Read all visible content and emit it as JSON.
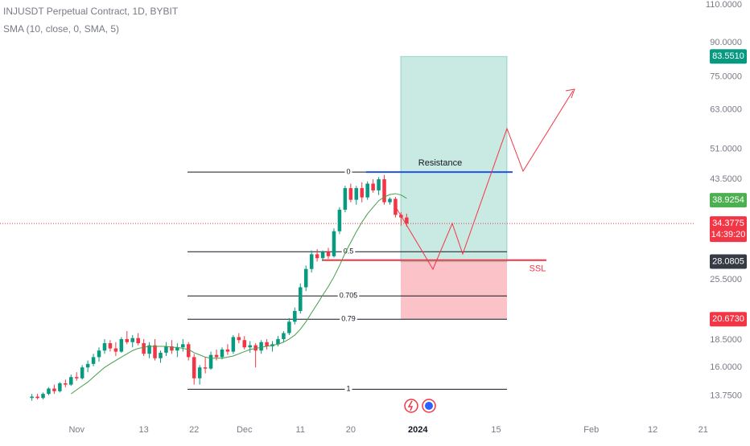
{
  "chart_data": {
    "type": "candlestick",
    "title": "INJUSDT Perpetual Contract, 1D, BYBIT",
    "subtitle": "SMA (10, close, 0, SMA, 5)",
    "log_scale": true,
    "grid": false,
    "up_color": "#089981",
    "down_color": "#f23645",
    "xlim": [
      -13.7,
      112.9
    ],
    "ylim": [
      12.5,
      112.8
    ],
    "xticks": [
      {
        "value": 0,
        "label": "Nov"
      },
      {
        "value": 12,
        "label": "13"
      },
      {
        "value": 21,
        "label": "22"
      },
      {
        "value": 30,
        "label": "Dec"
      },
      {
        "value": 40,
        "label": "11"
      },
      {
        "value": 49,
        "label": "20"
      },
      {
        "value": 61,
        "label": "2024"
      },
      {
        "value": 75,
        "label": "15"
      },
      {
        "value": 92,
        "label": "Feb"
      },
      {
        "value": 103,
        "label": "12"
      },
      {
        "value": 112,
        "label": "21"
      }
    ],
    "yticks": [
      {
        "value": 110,
        "label": "110.0000"
      },
      {
        "value": 90,
        "label": "90.0000"
      },
      {
        "value": 75,
        "label": "75.0000"
      },
      {
        "value": 63,
        "label": "63.0000"
      },
      {
        "value": 51,
        "label": "51.0000"
      },
      {
        "value": 43.5,
        "label": "43.5000"
      },
      {
        "value": 25.5,
        "label": "25.5000"
      },
      {
        "value": 18.5,
        "label": "18.5000"
      },
      {
        "value": 16,
        "label": "16.0000"
      },
      {
        "value": 13.75,
        "label": "13.7500"
      }
    ],
    "x": [
      -8,
      -7,
      -6,
      -5,
      -4,
      -3,
      -2,
      -1,
      0,
      1,
      2,
      3,
      4,
      5,
      6,
      7,
      8,
      9,
      10,
      11,
      12,
      13,
      14,
      15,
      16,
      17,
      18,
      19,
      20,
      21,
      22,
      23,
      24,
      25,
      26,
      27,
      28,
      29,
      30,
      31,
      32,
      33,
      34,
      35,
      36,
      37,
      38,
      39,
      40,
      41,
      42,
      43,
      44,
      45,
      46,
      47,
      48,
      49,
      50,
      51,
      52,
      53,
      54,
      55,
      56,
      57,
      58,
      59
    ],
    "open": [
      13.6,
      13.7,
      13.6,
      13.9,
      14.3,
      14.1,
      14.7,
      14.6,
      15.2,
      15.1,
      16.0,
      16.3,
      16.9,
      17.5,
      18.2,
      17.7,
      17.4,
      18.6,
      18.3,
      18.7,
      18.2,
      17.2,
      18.0,
      16.8,
      17.3,
      17.9,
      17.5,
      17.8,
      18.1,
      16.9,
      15.1,
      16.0,
      15.9,
      17.1,
      16.9,
      17.6,
      17.4,
      18.8,
      18.5,
      17.8,
      18.0,
      17.5,
      18.3,
      17.9,
      18.1,
      18.6,
      19.2,
      20.4,
      21.6,
      24.5,
      27.0,
      29.2,
      28.6,
      29.6,
      28.9,
      33.0,
      37.0,
      41.5,
      39.0,
      41.5,
      39.5,
      42.5,
      41.0,
      43.5,
      38.5,
      39.2,
      36.0,
      35.5
    ],
    "high": [
      13.9,
      13.9,
      14.0,
      14.4,
      14.6,
      14.8,
      15.0,
      15.4,
      15.6,
      16.2,
      16.6,
      17.2,
      17.8,
      18.6,
      18.5,
      18.3,
      18.8,
      19.4,
      19.0,
      19.2,
      18.6,
      18.3,
      18.6,
      17.5,
      18.3,
      18.5,
      18.2,
      18.6,
      18.3,
      17.2,
      16.2,
      16.9,
      17.4,
      17.6,
      17.8,
      18.1,
      19.0,
      19.2,
      18.9,
      18.4,
      18.2,
      18.5,
      18.6,
      18.4,
      18.9,
      19.4,
      20.8,
      22.0,
      25.0,
      27.5,
      29.8,
      30.0,
      29.8,
      30.2,
      33.5,
      37.5,
      42.0,
      42.5,
      42.0,
      42.8,
      43.0,
      43.5,
      44.0,
      44.5,
      39.5,
      39.6,
      36.5,
      36.2
    ],
    "low": [
      13.4,
      13.5,
      13.5,
      13.8,
      13.9,
      14.0,
      14.4,
      14.5,
      14.9,
      15.0,
      15.6,
      16.1,
      16.5,
      17.2,
      17.4,
      17.0,
      17.3,
      18.1,
      17.8,
      18.0,
      17.0,
      16.8,
      16.6,
      16.4,
      17.0,
      17.2,
      16.9,
      17.4,
      16.6,
      14.6,
      14.6,
      15.5,
      15.8,
      16.6,
      16.7,
      17.1,
      17.2,
      18.2,
      17.6,
      17.3,
      16.0,
      17.2,
      17.6,
      17.4,
      17.9,
      18.3,
      19.0,
      20.1,
      21.3,
      24.0,
      26.5,
      28.1,
      28.2,
      28.5,
      28.7,
      32.5,
      36.5,
      38.5,
      38.0,
      38.5,
      39.0,
      40.5,
      40.0,
      38.0,
      38.0,
      35.5,
      34.0,
      33.8
    ],
    "close": [
      13.7,
      13.6,
      13.9,
      14.3,
      14.1,
      14.7,
      14.6,
      15.2,
      15.1,
      16.0,
      16.3,
      16.9,
      17.5,
      18.2,
      17.7,
      17.4,
      18.6,
      18.3,
      18.7,
      18.2,
      17.2,
      18.0,
      16.8,
      17.3,
      17.9,
      17.5,
      17.8,
      18.1,
      16.9,
      15.1,
      16.0,
      15.9,
      17.1,
      16.9,
      17.6,
      17.4,
      18.8,
      18.5,
      17.8,
      18.0,
      17.5,
      18.3,
      17.9,
      18.1,
      18.6,
      19.2,
      20.4,
      21.6,
      24.5,
      27.0,
      29.2,
      28.6,
      29.6,
      28.9,
      33.0,
      37.0,
      41.5,
      39.0,
      41.5,
      39.5,
      42.5,
      41.0,
      43.5,
      38.5,
      39.2,
      36.0,
      35.5,
      34.3775
    ],
    "sma": {
      "color": "#43a047",
      "values": [
        null,
        null,
        null,
        null,
        null,
        null,
        null,
        13.9,
        14.2,
        14.5,
        14.8,
        15.2,
        15.6,
        16.0,
        16.3,
        16.6,
        16.9,
        17.2,
        17.5,
        17.7,
        17.8,
        17.9,
        17.9,
        17.9,
        17.9,
        17.8,
        17.8,
        17.7,
        17.6,
        17.3,
        17.1,
        16.9,
        16.8,
        16.8,
        16.8,
        16.9,
        17.0,
        17.2,
        17.4,
        17.6,
        17.7,
        17.8,
        17.9,
        18.0,
        18.1,
        18.3,
        18.6,
        19.0,
        19.6,
        20.4,
        21.4,
        22.4,
        23.5,
        24.6,
        25.9,
        27.5,
        29.4,
        31.1,
        32.9,
        34.6,
        36.2,
        37.5,
        38.8,
        39.6,
        40.1,
        40.3,
        40.0,
        39.3
      ]
    },
    "fib_levels": [
      {
        "label": "0",
        "price": 45.2
      },
      {
        "label": "0.5",
        "price": 29.6
      },
      {
        "label": "0.705",
        "price": 23.4
      },
      {
        "label": "0.79",
        "price": 20.67
      },
      {
        "label": "1",
        "price": 14.25
      }
    ],
    "resistance": {
      "label": "Resistance",
      "price": 45.2,
      "color": "#1e53e5"
    },
    "ssl": {
      "label": "SSL",
      "price": 28.3,
      "color": "#f23645"
    },
    "position": {
      "target": 83.551,
      "entry": 28.0805,
      "stop": 20.673
    },
    "price_labels": [
      {
        "value": 83.551,
        "label": "83.5510",
        "color": "#089981"
      },
      {
        "value": 38.9254,
        "label": "38.9254",
        "color": "#4caf50"
      },
      {
        "value": 34.3775,
        "label": "34.3775",
        "color": "#f23645"
      },
      {
        "value": 28.0805,
        "label": "28.0805",
        "color": "#363a45"
      },
      {
        "value": 20.673,
        "label": "20.6730",
        "color": "#f23645"
      }
    ],
    "countdown": "14:39:20"
  }
}
